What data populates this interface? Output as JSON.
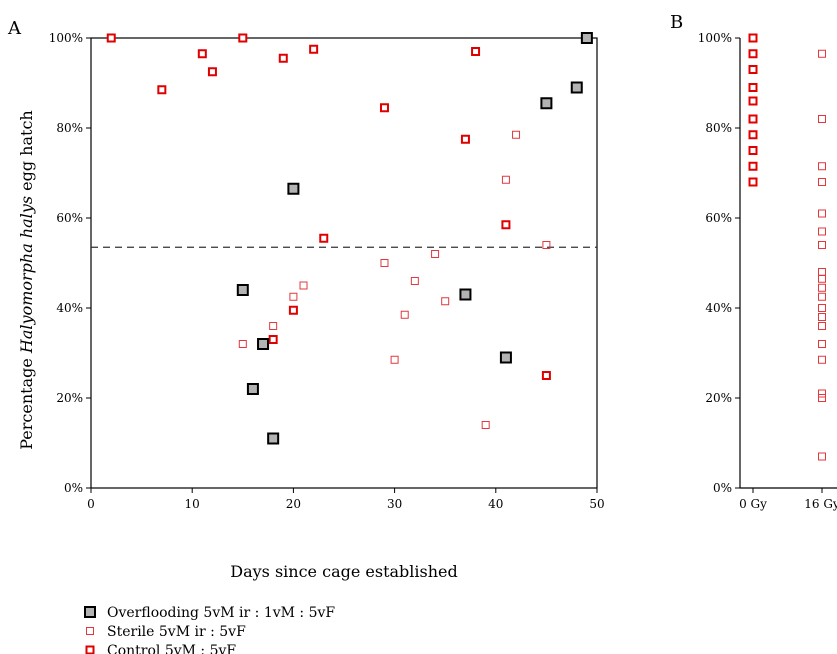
{
  "chart_data": [
    {
      "type": "scatter",
      "panel": "A",
      "xlabel": "Days since cage established",
      "ylabel_prefix": "Percentage ",
      "ylabel_italic": "Halyomorpha halys",
      "ylabel_suffix": " egg hatch",
      "xlim": [
        0,
        50
      ],
      "ylim": [
        0,
        100
      ],
      "xticks": [
        0,
        10,
        20,
        30,
        40,
        50
      ],
      "yticks": [
        0,
        20,
        40,
        60,
        80,
        100
      ],
      "ytick_labels": [
        "0%",
        "20%",
        "40%",
        "60%",
        "80%",
        "100%"
      ],
      "reference_line_y": 53.5,
      "series": [
        {
          "name": "Overflooding 5vM ir : 1vM : 5vF",
          "marker": "overflooding",
          "points": [
            [
              15,
              44
            ],
            [
              16,
              22
            ],
            [
              17,
              32
            ],
            [
              18,
              11
            ],
            [
              20,
              66.5
            ],
            [
              37,
              43
            ],
            [
              41,
              29
            ],
            [
              45,
              85.5
            ],
            [
              48,
              89
            ],
            [
              49,
              100
            ]
          ]
        },
        {
          "name": "Sterile 5vM ir : 5vF",
          "marker": "sterile",
          "points": [
            [
              15,
              32
            ],
            [
              18,
              36
            ],
            [
              20,
              42.5
            ],
            [
              21,
              45
            ],
            [
              29,
              50
            ],
            [
              30,
              28.5
            ],
            [
              31,
              38.5
            ],
            [
              32,
              46
            ],
            [
              34,
              52
            ],
            [
              35,
              41.5
            ],
            [
              39,
              14
            ],
            [
              41,
              68.5
            ],
            [
              42,
              78.5
            ],
            [
              45,
              54
            ]
          ]
        },
        {
          "name": "Control 5vM : 5vF",
          "marker": "control",
          "points": [
            [
              2,
              100
            ],
            [
              7,
              88.5
            ],
            [
              11,
              96.5
            ],
            [
              12,
              92.5
            ],
            [
              15,
              100
            ],
            [
              18,
              33
            ],
            [
              19,
              95.5
            ],
            [
              20,
              39.5
            ],
            [
              22,
              97.5
            ],
            [
              23,
              55.5
            ],
            [
              29,
              84.5
            ],
            [
              37,
              77.5
            ],
            [
              38,
              97
            ],
            [
              41,
              58.5
            ],
            [
              45,
              25
            ]
          ]
        }
      ]
    },
    {
      "type": "scatter",
      "panel": "B",
      "categories": [
        "0 Gy",
        "16 Gy"
      ],
      "ylim": [
        0,
        100
      ],
      "yticks": [
        0,
        20,
        40,
        60,
        80,
        100
      ],
      "ytick_labels": [
        "0%",
        "20%",
        "40%",
        "60%",
        "80%",
        "100%"
      ],
      "series": [
        {
          "category": "0 Gy",
          "marker": "control",
          "values": [
            100,
            96.5,
            93,
            89,
            86,
            82,
            78.5,
            75,
            71.5,
            68
          ]
        },
        {
          "category": "16 Gy",
          "marker": "sterile",
          "values": [
            96.5,
            82,
            71.5,
            68,
            61,
            57,
            54,
            48,
            46.5,
            44.5,
            42.5,
            40,
            38,
            36,
            32,
            28.5,
            21,
            20,
            7
          ]
        }
      ]
    }
  ],
  "legend": [
    {
      "label": "Overflooding 5vM ir : 1vM : 5vF",
      "marker": "overflooding"
    },
    {
      "label": "Sterile 5vM ir : 5vF",
      "marker": "sterile"
    },
    {
      "label": "Control 5vM : 5vF",
      "marker": "control"
    }
  ],
  "colors": {
    "overflooding_fill": "#b3b3b3",
    "overflooding_stroke": "#000000",
    "sterile_stroke": "#e0393e",
    "control_stroke": "#e00000",
    "reference_line": "#333333"
  }
}
